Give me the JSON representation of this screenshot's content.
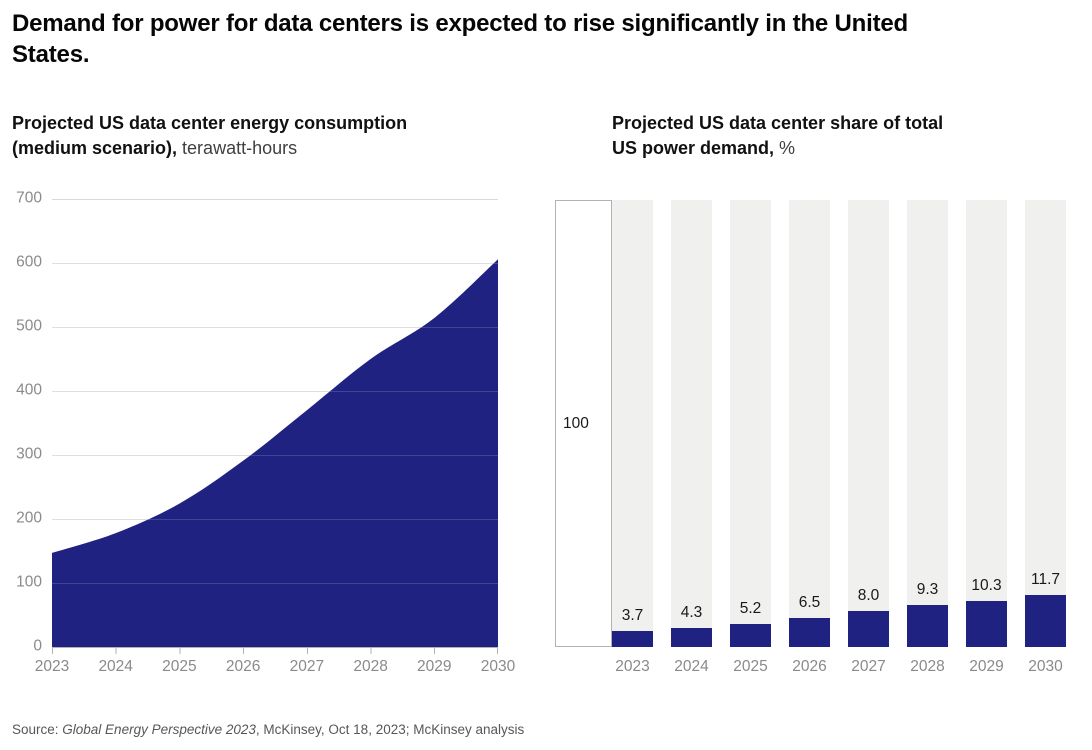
{
  "page": {
    "title": "Demand for power for data centers is expected to rise significantly in the United States.",
    "source": {
      "prefix": "Source: ",
      "italic": "Global Energy Perspective 2023",
      "suffix": ", McKinsey, Oct 18, 2023; McKinsey analysis"
    }
  },
  "colors": {
    "accent_blue": "#1f2280",
    "bar_track_gray": "#f0f0ee",
    "gridline": "#d9d9d9",
    "axis_gray": "#b3b3b3",
    "tick_text_gray": "#8a8a8a",
    "value_text": "#191919"
  },
  "chart_data": [
    {
      "type": "area",
      "title_bold": "Projected US data center energy consumption (medium scenario),",
      "title_light": " terawatt-hours",
      "x": [
        "2023",
        "2024",
        "2025",
        "2026",
        "2027",
        "2028",
        "2029",
        "2030"
      ],
      "values": [
        147,
        178,
        224,
        291,
        370,
        450,
        514,
        606
      ],
      "ylim": [
        0,
        700
      ],
      "y_ticks": [
        "700",
        "600",
        "500",
        "400",
        "300",
        "200",
        "100",
        "0"
      ],
      "grid": true,
      "legend": "none",
      "xlabel": "",
      "ylabel": "terawatt-hours"
    },
    {
      "type": "bar",
      "title_bold": "Projected US data center share of total US power demand,",
      "title_light": " %",
      "categories": [
        "2023",
        "2024",
        "2025",
        "2026",
        "2027",
        "2028",
        "2029",
        "2030"
      ],
      "values": [
        3.7,
        4.3,
        5.2,
        6.5,
        8.0,
        9.3,
        10.3,
        11.7
      ],
      "value_labels": [
        "3.7",
        "4.3",
        "5.2",
        "6.5",
        "8.0",
        "9.3",
        "10.3",
        "11.7"
      ],
      "axis_max_label": "100",
      "ylim": [
        0,
        100
      ],
      "grid": false,
      "legend": "none",
      "xlabel": "",
      "ylabel": "%"
    }
  ]
}
